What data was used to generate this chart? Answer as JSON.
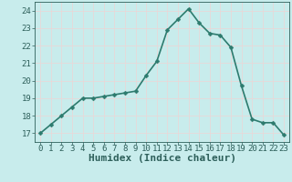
{
  "x": [
    0,
    1,
    2,
    3,
    4,
    5,
    6,
    7,
    8,
    9,
    10,
    11,
    12,
    13,
    14,
    15,
    16,
    17,
    18,
    19,
    20,
    21,
    22,
    23
  ],
  "y": [
    17.0,
    17.5,
    18.0,
    18.5,
    19.0,
    19.0,
    19.1,
    19.2,
    19.3,
    19.4,
    20.3,
    21.1,
    22.9,
    23.5,
    24.1,
    23.3,
    22.7,
    22.6,
    21.9,
    19.7,
    17.8,
    17.6,
    17.6,
    16.9
  ],
  "xlabel": "Humidex (Indice chaleur)",
  "xlim": [
    -0.5,
    23.5
  ],
  "ylim": [
    16.5,
    24.5
  ],
  "yticks": [
    17,
    18,
    19,
    20,
    21,
    22,
    23,
    24
  ],
  "xticks": [
    0,
    1,
    2,
    3,
    4,
    5,
    6,
    7,
    8,
    9,
    10,
    11,
    12,
    13,
    14,
    15,
    16,
    17,
    18,
    19,
    20,
    21,
    22,
    23
  ],
  "line_color": "#2d7b6e",
  "bg_color": "#c8ecec",
  "grid_color": "#e8d8d8",
  "tick_color": "#2d5f5a",
  "line_width": 1.2,
  "marker_size": 2.5,
  "xlabel_fontsize": 8,
  "tick_fontsize": 6.5
}
